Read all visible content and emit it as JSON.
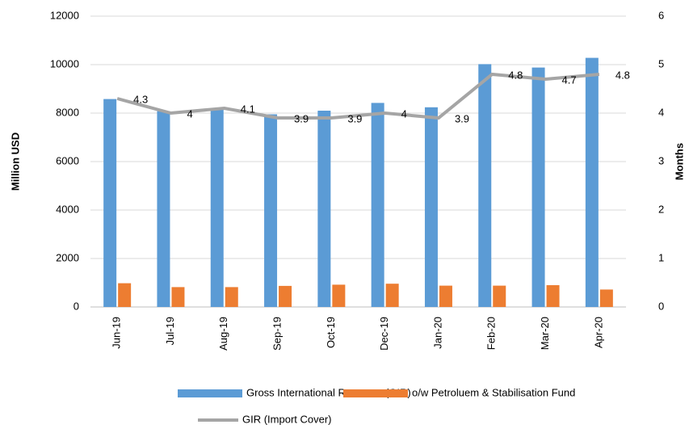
{
  "chart_data": {
    "type": "bar-line",
    "categories": [
      "Jun-19",
      "Jul-19",
      "Aug-19",
      "Sep-19",
      "Oct-19",
      "Dec-19",
      "Jan-20",
      "Feb-20",
      "Mar-20",
      "Apr-20"
    ],
    "series": [
      {
        "name": "Gross International Reserves (GIR)",
        "color": "#5b9bd5",
        "type": "bar",
        "values": [
          8580,
          8080,
          8150,
          7950,
          8100,
          8420,
          8240,
          10020,
          9880,
          10280
        ]
      },
      {
        "name": "o/w Petroluem & Stabilisation Fund",
        "color": "#ed7d31",
        "type": "bar",
        "values": [
          980,
          820,
          820,
          870,
          920,
          960,
          880,
          880,
          900,
          720
        ]
      },
      {
        "name": "GIR (Import Cover)",
        "color": "#a5a5a5",
        "type": "line",
        "axis": "y2",
        "values": [
          4.3,
          4,
          4.1,
          3.9,
          3.9,
          4,
          3.9,
          4.8,
          4.7,
          4.8
        ]
      }
    ],
    "ylabel": "Million USD",
    "y2label": "Months",
    "ylim": [
      0,
      12000
    ],
    "yticks": [
      0,
      2000,
      4000,
      6000,
      8000,
      10000,
      12000
    ],
    "y2lim": [
      0,
      6
    ],
    "y2ticks": [
      0,
      1,
      2,
      3,
      4,
      5,
      6
    ],
    "grid": true
  }
}
